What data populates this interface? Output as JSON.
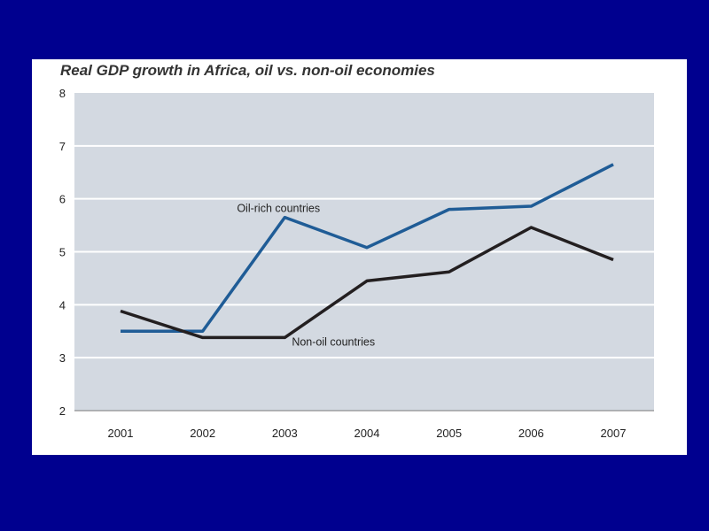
{
  "chart_data": {
    "type": "line",
    "title": "Real GDP growth in Africa, oil vs. non-oil economies",
    "xlabel": "",
    "ylabel": "",
    "categories": [
      "2001",
      "2002",
      "2003",
      "2004",
      "2005",
      "2006",
      "2007"
    ],
    "ylim": [
      2,
      8
    ],
    "yticks": [
      "2",
      "3",
      "4",
      "5",
      "6",
      "7",
      "8"
    ],
    "grid": true,
    "series": [
      {
        "name": "Oil-rich countries",
        "color": "#1f5c96",
        "values": [
          3.5,
          3.5,
          5.65,
          5.08,
          5.8,
          5.86,
          6.65
        ],
        "label_anchor_index": 2
      },
      {
        "name": "Non-oil countries",
        "color": "#231f20",
        "values": [
          3.88,
          3.38,
          3.38,
          4.45,
          4.62,
          5.46,
          4.85
        ],
        "label_anchor_index": 2
      }
    ],
    "plot_background": "#d3d9e1",
    "grid_color": "#ffffff"
  }
}
